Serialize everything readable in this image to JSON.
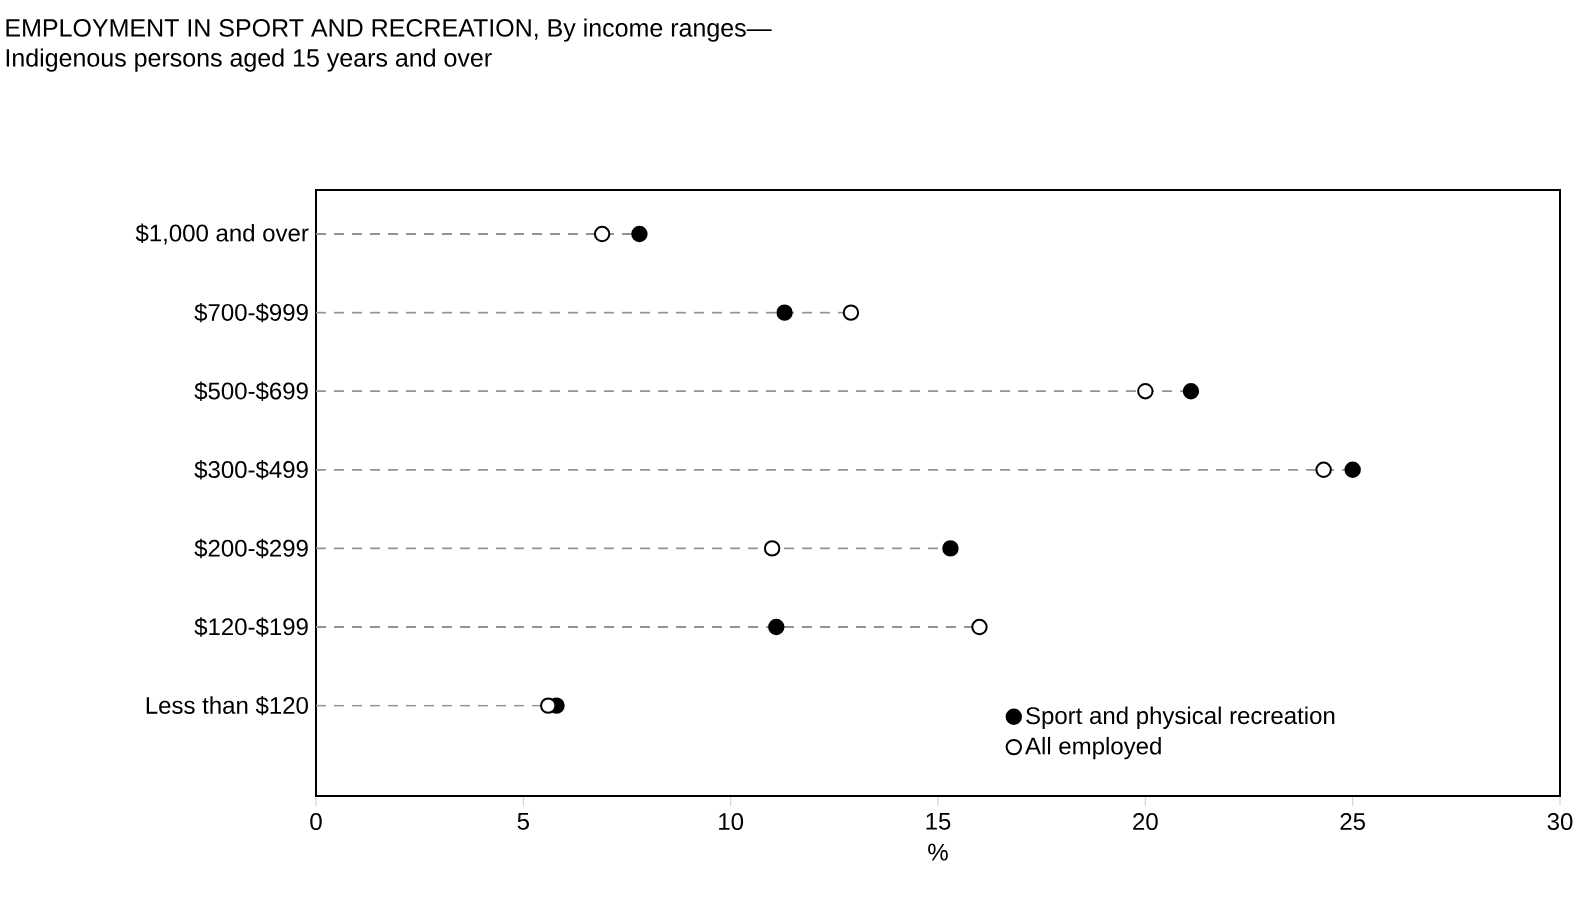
{
  "chart_data": {
    "type": "scatter",
    "orientation": "horizontal",
    "title": "EMPLOYMENT IN SPORT AND RECREATION, By income ranges—",
    "subtitle": "Indigenous persons aged 15 years and over",
    "xlabel": "%",
    "categories": [
      "$1,000 and over",
      "$700-$999",
      "$500-$699",
      "$300-$499",
      "$200-$299",
      "$120-$199",
      "Less than $120"
    ],
    "series": [
      {
        "name": "Sport and physical recreation",
        "color": "#000000",
        "values": [
          7.8,
          11.3,
          21.1,
          25.0,
          15.3,
          11.1,
          5.8
        ]
      },
      {
        "name": "All employed",
        "color": "#ffffff",
        "values": [
          6.9,
          12.9,
          20.0,
          24.3,
          11.0,
          16.0,
          5.6
        ]
      }
    ],
    "xlim": [
      0,
      30
    ],
    "xticks": [
      0,
      5,
      10,
      15,
      20,
      25,
      30
    ],
    "marker": "circle",
    "line_style": "dashed",
    "legend": "bottom right"
  }
}
